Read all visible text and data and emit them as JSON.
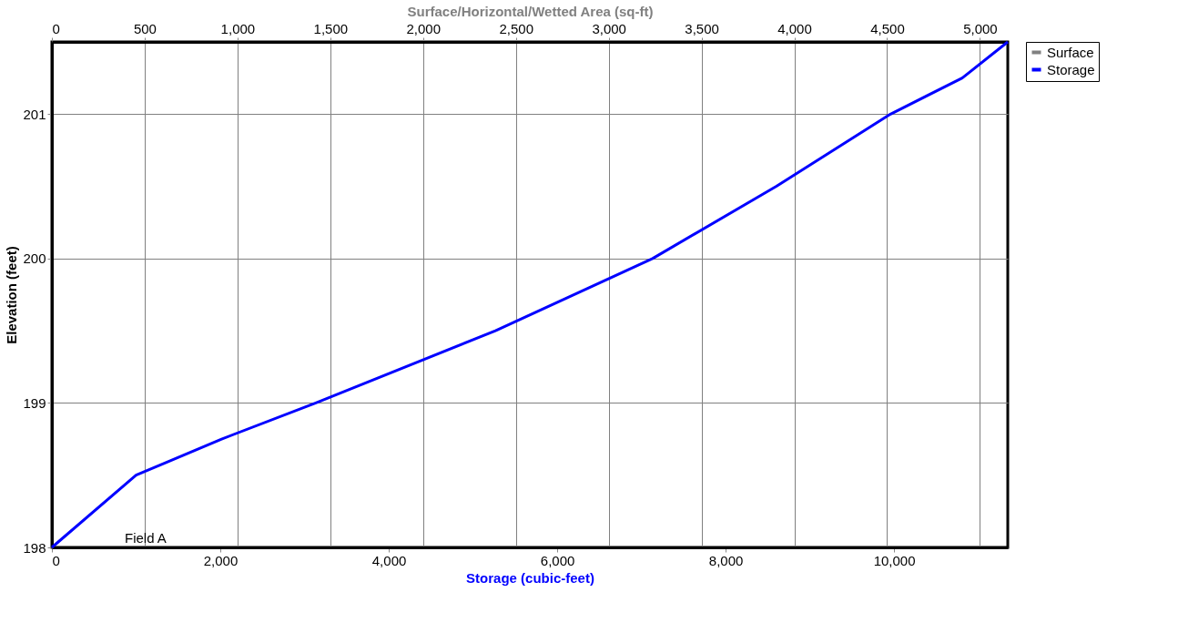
{
  "chart_data": {
    "type": "line",
    "xlabel": "Storage (cubic-feet)",
    "x2label": "Surface/Horizontal/Wetted Area (sq-ft)",
    "ylabel": "Elevation  (feet)",
    "xlim": [
      0,
      11350
    ],
    "xticks": [
      0,
      {
        "value": 2000,
        "label": "2,000"
      },
      {
        "value": 4000,
        "label": "4,000"
      },
      {
        "value": 6000,
        "label": "6,000"
      },
      {
        "value": 8000,
        "label": "8,000"
      },
      {
        "value": 10000,
        "label": "10,000"
      }
    ],
    "x2lim": [
      0,
      5150
    ],
    "x2ticks": [
      0,
      500,
      {
        "value": 1000,
        "label": "1,000"
      },
      {
        "value": 1500,
        "label": "1,500"
      },
      {
        "value": 2000,
        "label": "2,000"
      },
      {
        "value": 2500,
        "label": "2,500"
      },
      {
        "value": 3000,
        "label": "3,000"
      },
      {
        "value": 3500,
        "label": "3,500"
      },
      {
        "value": 4000,
        "label": "4,000"
      },
      {
        "value": 4500,
        "label": "4,500"
      },
      {
        "value": 5000,
        "label": "5,000"
      }
    ],
    "ylim": [
      198,
      201.5
    ],
    "yticks": [
      198,
      199,
      200,
      201
    ],
    "grid": true,
    "legend": "right",
    "line_style": "solid",
    "marker": "none",
    "series": [
      {
        "name": "Surface",
        "color": "#808080",
        "axis": "x2"
      },
      {
        "name": "Storage",
        "color": "#0000ff",
        "x": [
          0,
          1000,
          2015,
          3134,
          5267,
          7132,
          8603,
          9957,
          10810,
          11350
        ],
        "values": [
          198,
          198.5,
          198.75,
          199,
          199.5,
          200,
          200.5,
          201,
          201.25,
          201.5
        ]
      }
    ],
    "annotations": [
      "Field A"
    ]
  }
}
